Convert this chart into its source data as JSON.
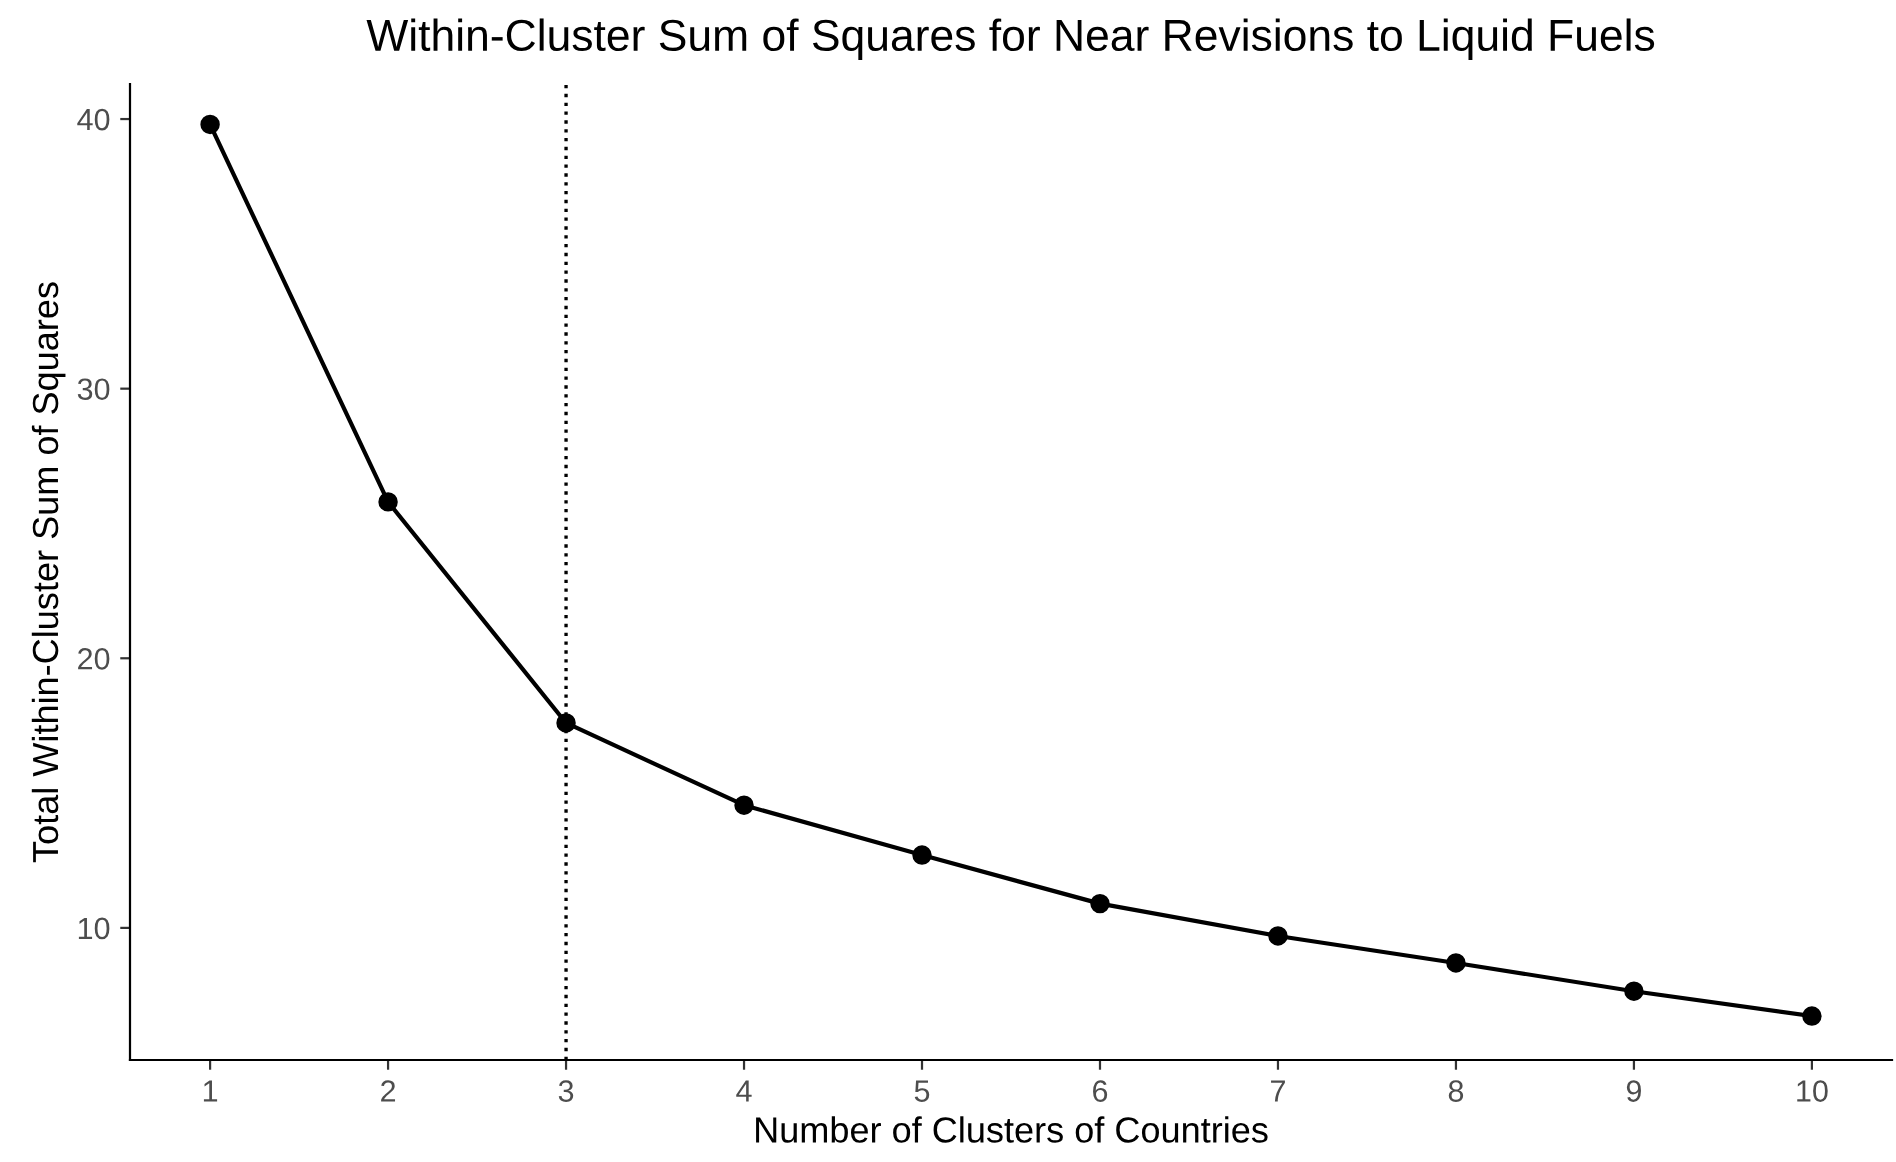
{
  "chart_data": {
    "type": "line",
    "title": "Within-Cluster Sum of Squares for Near Revisions to Liquid Fuels",
    "xlabel": "Number of Clusters of Countries",
    "ylabel": "Total Within-Cluster Sum of Squares",
    "x": [
      1,
      2,
      3,
      4,
      5,
      6,
      7,
      8,
      9,
      10
    ],
    "series": [
      {
        "color": "#000000",
        "values": [
          39.8,
          25.8,
          17.6,
          14.55,
          12.7,
          10.9,
          9.7,
          8.7,
          7.65,
          6.73
        ]
      }
    ],
    "marker": "circle",
    "line_style": "solid",
    "grid": false,
    "legend": false,
    "xlim": [
      0.55,
      10.45
    ],
    "ylim": [
      5.1,
      41.3
    ],
    "xticks": [
      1,
      2,
      3,
      4,
      5,
      6,
      7,
      8,
      9,
      10
    ],
    "yticks": [
      10,
      20,
      30,
      40
    ],
    "ref_lines": [
      {
        "axis": "x",
        "value": 3,
        "line_style": "dotted",
        "color": "#000000"
      }
    ]
  }
}
